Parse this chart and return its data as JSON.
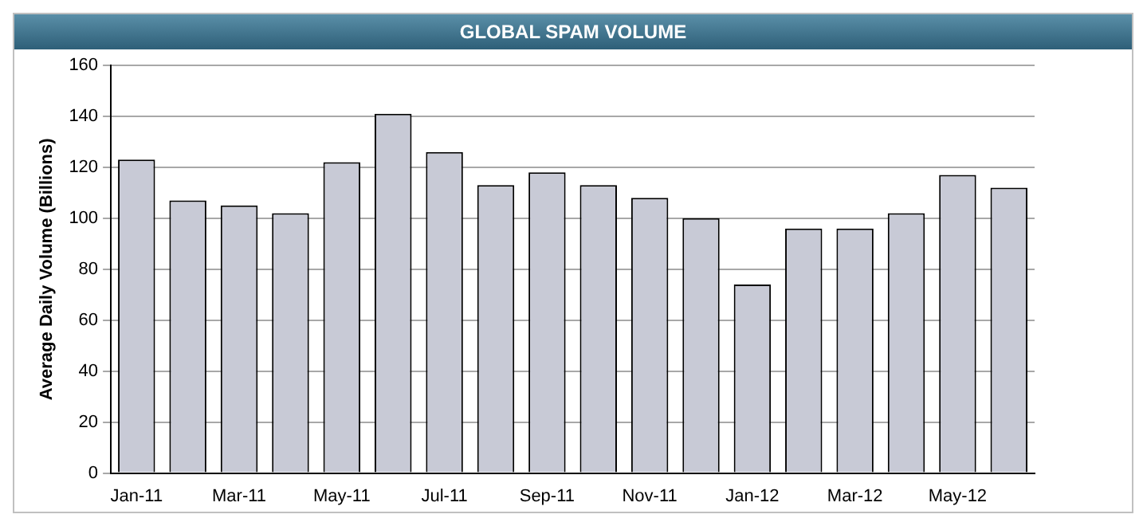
{
  "chart_data": {
    "type": "bar",
    "title": "GLOBAL SPAM VOLUME",
    "ylabel": "Average Daily Volume (Billions)",
    "categories": [
      "Jan-11",
      null,
      "Mar-11",
      null,
      "May-11",
      null,
      "Jul-11",
      null,
      "Sep-11",
      null,
      "Nov-11",
      null,
      "Jan-12",
      null,
      "Mar-12",
      null,
      "May-12",
      null
    ],
    "values": [
      123,
      107,
      105,
      102,
      122,
      141,
      126,
      113,
      118,
      113,
      108,
      100,
      74,
      96,
      96,
      102,
      117,
      112
    ],
    "color": "#c8cad6",
    "ylim": [
      0,
      160
    ],
    "yticks": [
      0,
      20,
      40,
      60,
      80,
      100,
      120,
      140,
      160
    ],
    "grid": "y"
  }
}
